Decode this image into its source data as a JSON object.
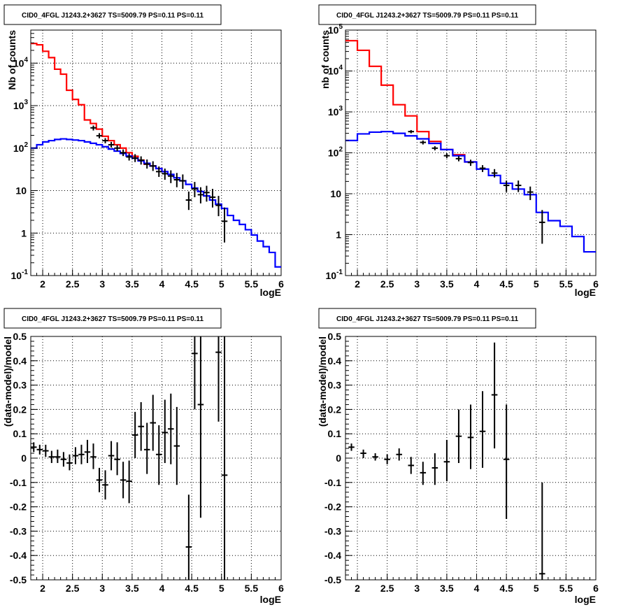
{
  "chart_data": [
    {
      "type": "line",
      "title": "CID0_4FGL J1243.2+3627 TS=5009.79 PS=0.11 PS=0.11",
      "xlabel": "logE",
      "ylabel": "Nb of counts",
      "xlim": [
        1.8,
        6.0
      ],
      "ylim": [
        0.1,
        60000
      ],
      "log_y": true,
      "grid": true,
      "x_ticks": [
        "2",
        "2.5",
        "3",
        "3.5",
        "4",
        "4.5",
        "5",
        "5.5",
        "6"
      ],
      "y_ticks": [
        "10^-1",
        "1",
        "10",
        "10^2",
        "10^3",
        "10^4"
      ],
      "series": [
        {
          "color": "#ff0000",
          "style": "step",
          "edges": [
            1.8,
            1.9,
            2.0,
            2.1,
            2.2,
            2.3,
            2.4,
            2.5,
            2.6,
            2.7,
            2.8,
            2.9,
            3.0,
            3.1,
            3.2,
            3.3,
            3.4,
            3.5,
            3.6,
            3.7,
            3.8,
            3.9,
            4.0,
            4.1
          ],
          "values": [
            29000,
            27000,
            19000,
            13500,
            7200,
            5500,
            2300,
            1400,
            1050,
            460,
            380,
            280,
            190,
            150,
            120,
            100,
            78,
            64,
            52,
            42,
            38,
            33,
            28
          ]
        },
        {
          "color": "#0000ff",
          "style": "step",
          "edges": [
            1.8,
            1.9,
            2.0,
            2.1,
            2.2,
            2.3,
            2.4,
            2.5,
            2.6,
            2.7,
            2.8,
            2.9,
            3.0,
            3.1,
            3.2,
            3.3,
            3.4,
            3.5,
            3.6,
            3.7,
            3.8,
            3.9,
            4.0,
            4.1,
            4.2,
            4.3,
            4.4,
            4.5,
            4.6,
            4.7,
            4.8,
            4.9,
            5.0,
            5.1,
            5.2,
            5.3,
            5.4,
            5.5,
            5.6,
            5.7,
            5.8,
            5.9,
            6.0
          ],
          "values": [
            100,
            120,
            140,
            150,
            160,
            165,
            160,
            155,
            150,
            140,
            130,
            120,
            108,
            95,
            85,
            75,
            65,
            58,
            50,
            44,
            38,
            33,
            28,
            24,
            20,
            17,
            14,
            11.5,
            9.5,
            7.5,
            6.0,
            4.8,
            3.8,
            2.6,
            2.0,
            1.6,
            1.2,
            0.9,
            0.65,
            0.48,
            0.35,
            0.16
          ]
        }
      ],
      "points": [
        {
          "x": 2.85,
          "y": 300,
          "lo": 260,
          "hi": 340
        },
        {
          "x": 2.95,
          "y": 195,
          "lo": 170,
          "hi": 225
        },
        {
          "x": 3.05,
          "y": 150,
          "lo": 130,
          "hi": 172
        },
        {
          "x": 3.15,
          "y": 120,
          "lo": 103,
          "hi": 140
        },
        {
          "x": 3.25,
          "y": 100,
          "lo": 85,
          "hi": 118
        },
        {
          "x": 3.35,
          "y": 78,
          "lo": 65,
          "hi": 93
        },
        {
          "x": 3.45,
          "y": 62,
          "lo": 51,
          "hi": 75
        },
        {
          "x": 3.55,
          "y": 58,
          "lo": 47,
          "hi": 72
        },
        {
          "x": 3.65,
          "y": 52,
          "lo": 41,
          "hi": 64
        },
        {
          "x": 3.75,
          "y": 42,
          "lo": 33,
          "hi": 54
        },
        {
          "x": 3.85,
          "y": 38,
          "lo": 29,
          "hi": 49
        },
        {
          "x": 3.95,
          "y": 28,
          "lo": 21,
          "hi": 37
        },
        {
          "x": 4.05,
          "y": 25,
          "lo": 18,
          "hi": 33
        },
        {
          "x": 4.15,
          "y": 22,
          "lo": 15,
          "hi": 30
        },
        {
          "x": 4.25,
          "y": 18,
          "lo": 12,
          "hi": 26
        },
        {
          "x": 4.35,
          "y": 17,
          "lo": 11,
          "hi": 24
        },
        {
          "x": 4.45,
          "y": 6,
          "lo": 3.5,
          "hi": 9.5
        },
        {
          "x": 4.55,
          "y": 11,
          "lo": 7,
          "hi": 16
        },
        {
          "x": 4.65,
          "y": 8,
          "lo": 5,
          "hi": 12
        },
        {
          "x": 4.75,
          "y": 9,
          "lo": 5.5,
          "hi": 13
        },
        {
          "x": 4.85,
          "y": 7,
          "lo": 4,
          "hi": 11
        },
        {
          "x": 4.95,
          "y": 4.5,
          "lo": 2.5,
          "hi": 7.5
        },
        {
          "x": 5.05,
          "y": 1.9,
          "lo": 0.6,
          "hi": 4
        }
      ]
    },
    {
      "type": "line",
      "title": "CID0_4FGL J1243.2+3627 TS=5009.79 PS=0.11 PS=0.11",
      "xlabel": "logE",
      "ylabel": "nb of counts",
      "xlim": [
        1.8,
        6.0
      ],
      "ylim": [
        0.1,
        100000
      ],
      "log_y": true,
      "grid": true,
      "x_ticks": [
        "2",
        "2.5",
        "3",
        "3.5",
        "4",
        "4.5",
        "5",
        "5.5",
        "6"
      ],
      "y_ticks": [
        "10^-1",
        "1",
        "10",
        "10^2",
        "10^3",
        "10^4",
        "10^5"
      ],
      "series": [
        {
          "color": "#ff0000",
          "style": "step",
          "edges": [
            1.8,
            2.0,
            2.2,
            2.4,
            2.6,
            2.8,
            3.0,
            3.2,
            3.4,
            3.6,
            3.8,
            4.0
          ],
          "values": [
            55000,
            32000,
            13000,
            4500,
            1500,
            800,
            330,
            190,
            120,
            90,
            60
          ]
        },
        {
          "color": "#0000ff",
          "style": "step",
          "edges": [
            1.8,
            2.0,
            2.2,
            2.4,
            2.6,
            2.8,
            3.0,
            3.2,
            3.4,
            3.6,
            3.8,
            4.0,
            4.2,
            4.4,
            4.6,
            4.8,
            5.0,
            5.2,
            5.4,
            5.6,
            5.8,
            6.0
          ],
          "values": [
            200,
            290,
            320,
            330,
            300,
            260,
            220,
            170,
            120,
            85,
            60,
            40,
            28,
            18,
            13,
            9.5,
            3.5,
            2.2,
            1.6,
            0.9,
            0.38
          ]
        }
      ],
      "points": [
        {
          "x": 2.9,
          "y": 330,
          "lo": 300,
          "hi": 360
        },
        {
          "x": 3.1,
          "y": 180,
          "lo": 160,
          "hi": 200
        },
        {
          "x": 3.3,
          "y": 130,
          "lo": 115,
          "hi": 145
        },
        {
          "x": 3.5,
          "y": 85,
          "lo": 74,
          "hi": 97
        },
        {
          "x": 3.7,
          "y": 72,
          "lo": 62,
          "hi": 83
        },
        {
          "x": 3.9,
          "y": 58,
          "lo": 48,
          "hi": 68
        },
        {
          "x": 4.1,
          "y": 42,
          "lo": 34,
          "hi": 50
        },
        {
          "x": 4.3,
          "y": 32,
          "lo": 25,
          "hi": 40
        },
        {
          "x": 4.5,
          "y": 16,
          "lo": 11,
          "hi": 21
        },
        {
          "x": 4.7,
          "y": 16,
          "lo": 11,
          "hi": 21
        },
        {
          "x": 4.9,
          "y": 11,
          "lo": 7,
          "hi": 15
        },
        {
          "x": 5.1,
          "y": 2,
          "lo": 0.6,
          "hi": 4
        }
      ]
    },
    {
      "type": "scatter",
      "title": "CID0_4FGL J1243.2+3627 TS=5009.79 PS=0.11 PS=0.11",
      "xlabel": "logE",
      "ylabel": "(data-model)/model",
      "xlim": [
        1.8,
        6.0
      ],
      "ylim": [
        -0.5,
        0.5
      ],
      "grid": true,
      "x_ticks": [
        "2",
        "2.5",
        "3",
        "3.5",
        "4",
        "4.5",
        "5",
        "5.5",
        "6"
      ],
      "y_ticks": [
        "-0.5",
        "-0.4",
        "-0.3",
        "-0.2",
        "-0.1",
        "0",
        "0.1",
        "0.2",
        "0.3",
        "0.4",
        "0.5"
      ],
      "points": [
        {
          "x": 1.85,
          "y": 0.045,
          "lo": 0.025,
          "hi": 0.065
        },
        {
          "x": 1.95,
          "y": 0.035,
          "lo": 0.015,
          "hi": 0.055
        },
        {
          "x": 2.05,
          "y": 0.03,
          "lo": 0.005,
          "hi": 0.055
        },
        {
          "x": 2.15,
          "y": 0.005,
          "lo": -0.02,
          "hi": 0.03
        },
        {
          "x": 2.25,
          "y": 0.005,
          "lo": -0.02,
          "hi": 0.035
        },
        {
          "x": 2.35,
          "y": -0.005,
          "lo": -0.035,
          "hi": 0.025
        },
        {
          "x": 2.45,
          "y": -0.02,
          "lo": -0.05,
          "hi": 0.015
        },
        {
          "x": 2.55,
          "y": 0.01,
          "lo": -0.025,
          "hi": 0.045
        },
        {
          "x": 2.65,
          "y": 0.015,
          "lo": -0.025,
          "hi": 0.055
        },
        {
          "x": 2.75,
          "y": 0.025,
          "lo": -0.02,
          "hi": 0.075
        },
        {
          "x": 2.85,
          "y": 0.005,
          "lo": -0.045,
          "hi": 0.06
        },
        {
          "x": 2.95,
          "y": -0.09,
          "lo": -0.14,
          "hi": -0.04
        },
        {
          "x": 3.05,
          "y": -0.11,
          "lo": -0.17,
          "hi": -0.05
        },
        {
          "x": 3.15,
          "y": 0.01,
          "lo": -0.05,
          "hi": 0.07
        },
        {
          "x": 3.25,
          "y": -0.005,
          "lo": -0.07,
          "hi": 0.065
        },
        {
          "x": 3.35,
          "y": -0.09,
          "lo": -0.165,
          "hi": -0.015
        },
        {
          "x": 3.45,
          "y": -0.095,
          "lo": -0.185,
          "hi": -0.01
        },
        {
          "x": 3.55,
          "y": 0.095,
          "lo": 0.0,
          "hi": 0.19
        },
        {
          "x": 3.65,
          "y": 0.13,
          "lo": 0.03,
          "hi": 0.23
        },
        {
          "x": 3.75,
          "y": 0.035,
          "lo": -0.065,
          "hi": 0.145
        },
        {
          "x": 3.85,
          "y": 0.145,
          "lo": 0.03,
          "hi": 0.26
        },
        {
          "x": 3.95,
          "y": 0.015,
          "lo": -0.11,
          "hi": 0.135
        },
        {
          "x": 4.05,
          "y": 0.105,
          "lo": -0.02,
          "hi": 0.24
        },
        {
          "x": 4.15,
          "y": 0.12,
          "lo": -0.025,
          "hi": 0.265
        },
        {
          "x": 4.25,
          "y": 0.05,
          "lo": -0.11,
          "hi": 0.21
        },
        {
          "x": 4.45,
          "y": -0.365,
          "lo": -0.5,
          "hi": -0.15
        },
        {
          "x": 4.55,
          "y": 0.43,
          "lo": 0.2,
          "hi": 0.5
        },
        {
          "x": 4.65,
          "y": 0.22,
          "lo": -0.245,
          "hi": 0.5
        },
        {
          "x": 4.95,
          "y": 0.435,
          "lo": 0.15,
          "hi": 0.5
        },
        {
          "x": 5.05,
          "y": -0.07,
          "lo": -0.5,
          "hi": 0.5
        }
      ]
    },
    {
      "type": "scatter",
      "title": "CID0_4FGL J1243.2+3627 TS=5009.79 PS=0.11 PS=0.11",
      "xlabel": "logE",
      "ylabel": "(data-model)/model",
      "xlim": [
        1.8,
        6.0
      ],
      "ylim": [
        -0.5,
        0.5
      ],
      "grid": true,
      "x_ticks": [
        "2",
        "2.5",
        "3",
        "3.5",
        "4",
        "4.5",
        "5",
        "5.5",
        "6"
      ],
      "y_ticks": [
        "-0.5",
        "-0.4",
        "-0.3",
        "-0.2",
        "-0.1",
        "0",
        "0.1",
        "0.2",
        "0.3",
        "0.4",
        "0.5"
      ],
      "points": [
        {
          "x": 1.9,
          "y": 0.045,
          "lo": 0.03,
          "hi": 0.06
        },
        {
          "x": 2.1,
          "y": 0.02,
          "lo": 0.0,
          "hi": 0.035
        },
        {
          "x": 2.3,
          "y": 0.005,
          "lo": -0.01,
          "hi": 0.02
        },
        {
          "x": 2.5,
          "y": -0.005,
          "lo": -0.025,
          "hi": 0.015
        },
        {
          "x": 2.7,
          "y": 0.015,
          "lo": -0.01,
          "hi": 0.04
        },
        {
          "x": 2.9,
          "y": -0.03,
          "lo": -0.065,
          "hi": 0.005
        },
        {
          "x": 3.1,
          "y": -0.06,
          "lo": -0.11,
          "hi": -0.015
        },
        {
          "x": 3.3,
          "y": -0.04,
          "lo": -0.11,
          "hi": 0.02
        },
        {
          "x": 3.5,
          "y": -0.015,
          "lo": -0.095,
          "hi": 0.075
        },
        {
          "x": 3.7,
          "y": 0.09,
          "lo": -0.02,
          "hi": 0.2
        },
        {
          "x": 3.9,
          "y": 0.085,
          "lo": -0.045,
          "hi": 0.22
        },
        {
          "x": 4.1,
          "y": 0.11,
          "lo": -0.04,
          "hi": 0.275
        },
        {
          "x": 4.3,
          "y": 0.26,
          "lo": 0.04,
          "hi": 0.475
        },
        {
          "x": 4.5,
          "y": -0.005,
          "lo": -0.25,
          "hi": 0.22
        },
        {
          "x": 5.1,
          "y": -0.475,
          "lo": -0.5,
          "hi": -0.1
        }
      ]
    }
  ]
}
